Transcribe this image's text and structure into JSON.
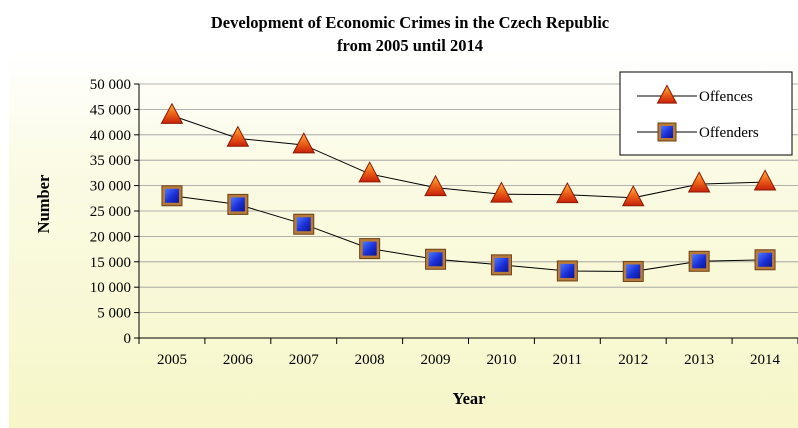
{
  "chart_data": {
    "type": "line",
    "title": "Development of Economic Crimes in the Czech Republic",
    "subtitle": "from 2005 until 2014",
    "xlabel": "Year",
    "ylabel": "Number",
    "categories": [
      "2005",
      "2006",
      "2007",
      "2008",
      "2009",
      "2010",
      "2011",
      "2012",
      "2013",
      "2014"
    ],
    "ylim": [
      0,
      50000
    ],
    "yticks": [
      0,
      5000,
      10000,
      15000,
      20000,
      25000,
      30000,
      35000,
      40000,
      45000,
      50000
    ],
    "ytick_labels": [
      "0",
      "5 000",
      "10 000",
      "15 000",
      "20 000",
      "25 000",
      "30 000",
      "35 000",
      "40 000",
      "45 000",
      "50 000"
    ],
    "grid": true,
    "legend_position": "top-right",
    "series": [
      {
        "name": "Offences",
        "marker": "triangle",
        "color": "#d92f10",
        "values": [
          43800,
          39300,
          38000,
          32300,
          29600,
          28300,
          28200,
          27600,
          30300,
          30700
        ]
      },
      {
        "name": "Offenders",
        "marker": "square",
        "color": "#1a2fd6",
        "values": [
          28000,
          26300,
          22400,
          17600,
          15500,
          14400,
          13200,
          13100,
          15100,
          15400
        ]
      }
    ]
  }
}
